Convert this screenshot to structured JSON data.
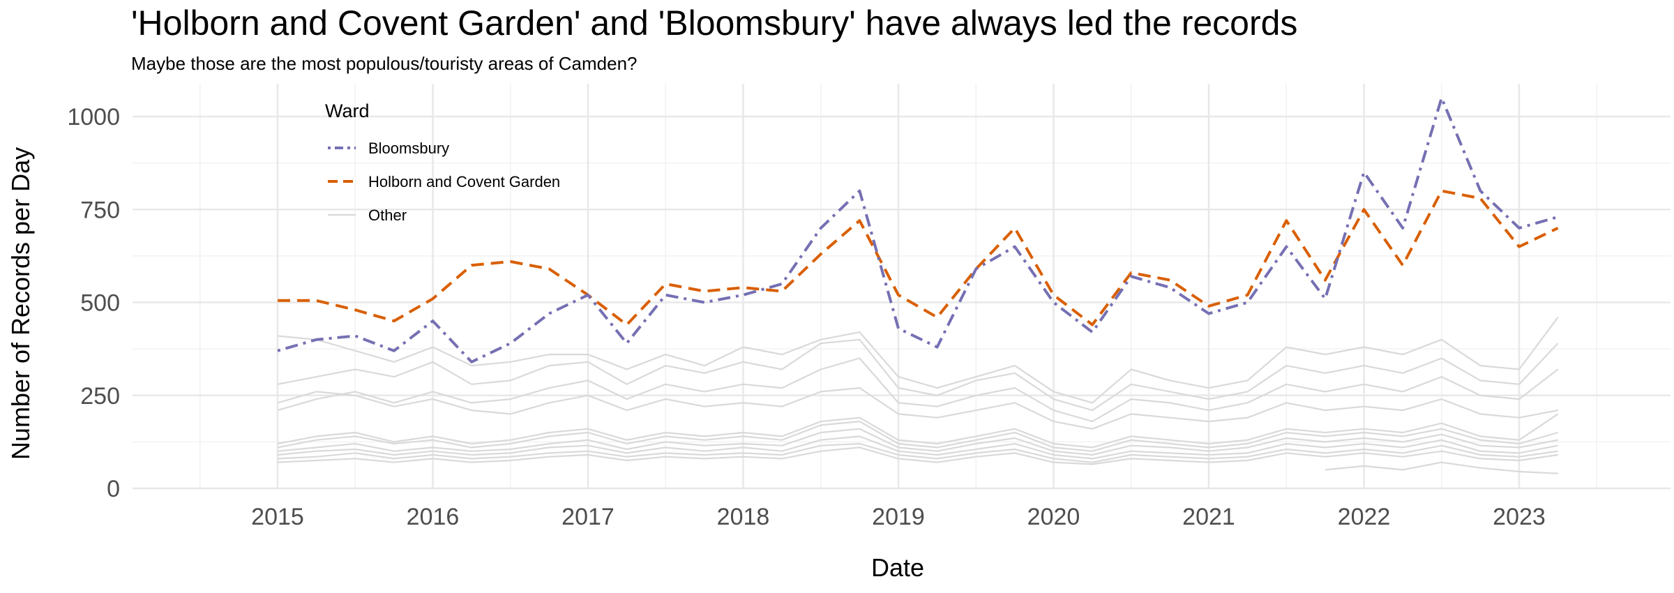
{
  "chart_data": {
    "type": "line",
    "title": "'Holborn and Covent Garden' and 'Bloomsbury' have always led the records",
    "subtitle": "Maybe those are the most populous/touristy areas of Camden?",
    "xlabel": "Date",
    "ylabel": "Number of Records per Day",
    "x_ticks": [
      "2015",
      "2016",
      "2017",
      "2018",
      "2019",
      "2020",
      "2021",
      "2022",
      "2023"
    ],
    "y_ticks": [
      0,
      250,
      500,
      750,
      1000
    ],
    "xlim": [
      "2014-06",
      "2023-12"
    ],
    "ylim": [
      0,
      1050
    ],
    "grid": true,
    "legend": {
      "title": "Ward",
      "position": "top-left",
      "entries": [
        "Bloomsbury",
        "Holborn and Covent Garden",
        "Other"
      ]
    },
    "colors": {
      "Bloomsbury": "#7570b3",
      "Holborn and Covent Garden": "#d95f02",
      "Other": "#d9d9d9"
    },
    "x_start": "2015-01",
    "x_step": "quarter",
    "series": [
      {
        "name": "Holborn and Covent Garden",
        "line": "dashed",
        "values": [
          505,
          505,
          480,
          450,
          510,
          600,
          610,
          590,
          520,
          440,
          550,
          530,
          540,
          530,
          630,
          720,
          520,
          460,
          590,
          700,
          520,
          440,
          580,
          560,
          490,
          520,
          720,
          560,
          750,
          600,
          800,
          780,
          650,
          700
        ]
      },
      {
        "name": "Bloomsbury",
        "line": "dotdash",
        "values": [
          370,
          400,
          410,
          370,
          450,
          340,
          390,
          470,
          520,
          390,
          520,
          500,
          520,
          550,
          700,
          800,
          430,
          380,
          590,
          650,
          500,
          420,
          570,
          540,
          470,
          500,
          650,
          510,
          850,
          700,
          1050,
          800,
          700,
          730
        ]
      },
      {
        "name": "Other",
        "line": "solid",
        "values": [
          410,
          400,
          370,
          340,
          380,
          330,
          340,
          360,
          360,
          320,
          360,
          330,
          380,
          360,
          400,
          420,
          300,
          270,
          300,
          330,
          260,
          230,
          320,
          290,
          270,
          290,
          380,
          360,
          380,
          360,
          400,
          330,
          320,
          460
        ]
      },
      {
        "name": "Other",
        "line": "solid",
        "values": [
          280,
          300,
          320,
          300,
          340,
          280,
          290,
          330,
          340,
          280,
          330,
          310,
          340,
          320,
          390,
          400,
          270,
          250,
          290,
          310,
          240,
          210,
          280,
          260,
          240,
          260,
          330,
          310,
          330,
          310,
          350,
          290,
          280,
          390
        ]
      },
      {
        "name": "Other",
        "line": "solid",
        "values": [
          210,
          240,
          260,
          230,
          260,
          230,
          240,
          270,
          290,
          240,
          280,
          260,
          280,
          270,
          320,
          350,
          230,
          220,
          250,
          270,
          210,
          180,
          240,
          230,
          210,
          230,
          280,
          260,
          280,
          260,
          300,
          250,
          240,
          320
        ]
      },
      {
        "name": "Other",
        "line": "solid",
        "values": [
          230,
          260,
          250,
          220,
          240,
          210,
          200,
          230,
          250,
          210,
          240,
          220,
          230,
          220,
          260,
          270,
          200,
          190,
          210,
          230,
          180,
          160,
          200,
          190,
          180,
          190,
          230,
          210,
          220,
          210,
          240,
          200,
          190,
          210
        ]
      },
      {
        "name": "Other",
        "line": "solid",
        "values": [
          110,
          130,
          140,
          120,
          130,
          110,
          120,
          140,
          150,
          120,
          140,
          130,
          140,
          130,
          170,
          180,
          120,
          110,
          130,
          150,
          110,
          100,
          130,
          120,
          110,
          120,
          150,
          140,
          150,
          140,
          160,
          130,
          120,
          150
        ]
      },
      {
        "name": "Other",
        "line": "solid",
        "values": [
          100,
          110,
          120,
          100,
          110,
          100,
          105,
          120,
          130,
          105,
          125,
          115,
          120,
          115,
          150,
          160,
          110,
          100,
          120,
          135,
          100,
          90,
          115,
          110,
          100,
          110,
          135,
          125,
          135,
          125,
          145,
          115,
          110,
          130
        ]
      },
      {
        "name": "Other",
        "line": "solid",
        "values": [
          90,
          100,
          105,
          90,
          100,
          90,
          95,
          110,
          115,
          95,
          110,
          100,
          110,
          100,
          130,
          140,
          100,
          90,
          105,
          120,
          90,
          80,
          100,
          95,
          90,
          95,
          120,
          110,
          120,
          110,
          130,
          100,
          95,
          115
        ]
      },
      {
        "name": "Other",
        "line": "solid",
        "values": [
          80,
          85,
          95,
          80,
          90,
          80,
          85,
          95,
          100,
          85,
          95,
          90,
          95,
          90,
          115,
          120,
          90,
          80,
          95,
          105,
          80,
          70,
          90,
          85,
          80,
          85,
          105,
          95,
          105,
          95,
          115,
          90,
          85,
          100
        ]
      },
      {
        "name": "Other",
        "line": "solid",
        "values": [
          70,
          75,
          80,
          70,
          80,
          70,
          75,
          85,
          90,
          75,
          85,
          80,
          85,
          80,
          100,
          110,
          80,
          70,
          85,
          95,
          70,
          65,
          80,
          75,
          70,
          75,
          95,
          85,
          95,
          85,
          100,
          80,
          75,
          90
        ]
      },
      {
        "name": "Other",
        "line": "solid",
        "values": [
          120,
          140,
          150,
          125,
          140,
          120,
          130,
          150,
          160,
          130,
          150,
          140,
          150,
          140,
          180,
          190,
          130,
          120,
          140,
          160,
          120,
          110,
          140,
          130,
          120,
          130,
          160,
          150,
          160,
          150,
          175,
          140,
          130,
          200
        ]
      },
      {
        "name": "Other",
        "line": "solid",
        "values": [
          null,
          null,
          null,
          null,
          null,
          null,
          null,
          null,
          null,
          null,
          null,
          null,
          null,
          null,
          null,
          null,
          null,
          null,
          null,
          null,
          null,
          null,
          null,
          null,
          null,
          null,
          null,
          50,
          60,
          50,
          70,
          55,
          45,
          40
        ]
      }
    ]
  }
}
